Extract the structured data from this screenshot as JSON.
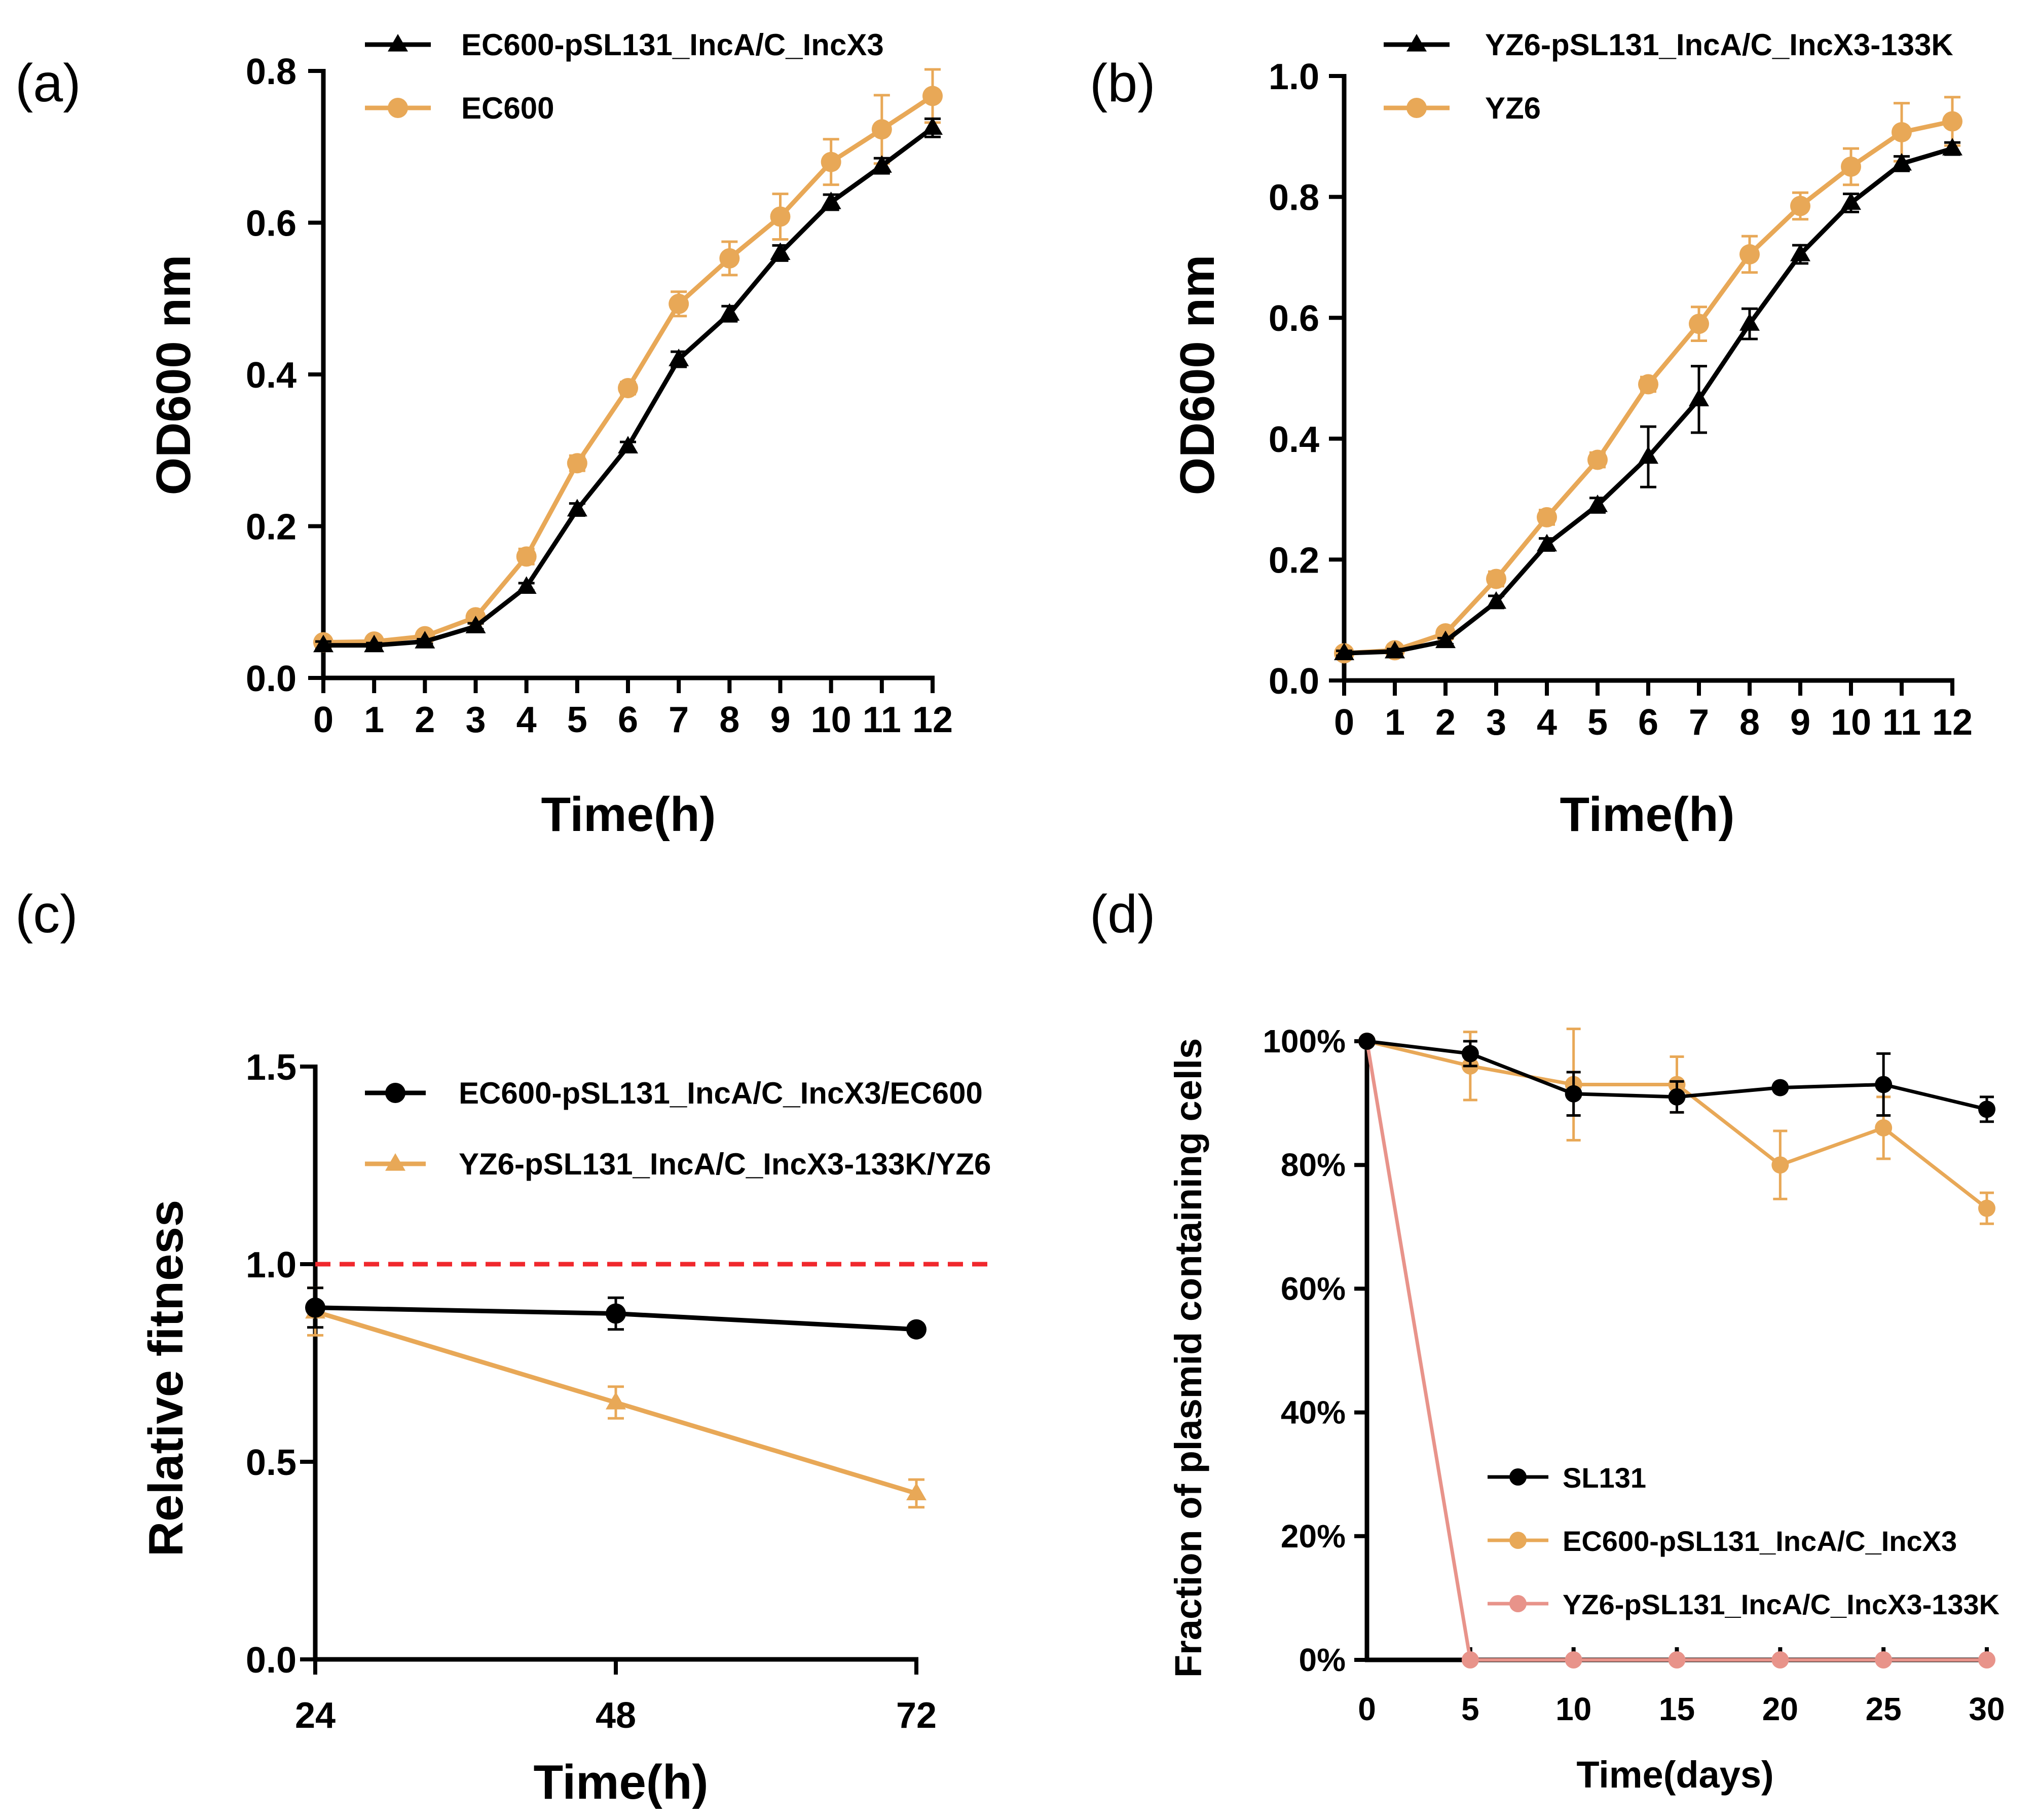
{
  "colors": {
    "black": "#000000",
    "orange": "#E8A857",
    "pink": "#E8938A",
    "red_dashed": "#F0282D"
  },
  "chart_data": [
    {
      "panel": "(a)",
      "type": "line",
      "xlabel": "Time(h)",
      "ylabel": "OD600 nm",
      "xlim": [
        0,
        12
      ],
      "ylim": [
        0,
        0.8
      ],
      "xticks": [
        0,
        1,
        2,
        3,
        4,
        5,
        6,
        7,
        8,
        9,
        10,
        11,
        12
      ],
      "xtick_labels": [
        "0",
        "1",
        "2",
        "3",
        "4",
        "5",
        "6",
        "7",
        "8",
        "9",
        "10",
        "11",
        "12"
      ],
      "yticks": [
        0,
        0.2,
        0.4,
        0.6,
        0.8
      ],
      "ytick_labels": [
        "0.0",
        "0.2",
        "0.4",
        "0.6",
        "0.8"
      ],
      "legend_position": "top-left",
      "series": [
        {
          "name": "EC600-pSL131_IncA/C_IncX3",
          "color": "#000000",
          "marker": "triangle",
          "x": [
            0,
            1,
            2,
            3,
            4,
            5,
            6,
            7,
            8,
            9,
            10,
            11,
            12
          ],
          "values": [
            0.043,
            0.043,
            0.048,
            0.068,
            0.12,
            0.222,
            0.305,
            0.42,
            0.48,
            0.56,
            0.627,
            0.675,
            0.725
          ],
          "errors": [
            0.005,
            0.003,
            0.003,
            0.004,
            0.005,
            0.008,
            0.006,
            0.01,
            0.01,
            0.01,
            0.01,
            0.01,
            0.012
          ]
        },
        {
          "name": "EC600",
          "color": "#E8A857",
          "marker": "circle",
          "x": [
            0,
            1,
            2,
            3,
            4,
            5,
            6,
            7,
            8,
            9,
            10,
            11,
            12
          ],
          "values": [
            0.047,
            0.048,
            0.055,
            0.08,
            0.16,
            0.283,
            0.382,
            0.493,
            0.553,
            0.608,
            0.68,
            0.723,
            0.767
          ],
          "errors": [
            0.004,
            0.003,
            0.004,
            0.006,
            0.01,
            0.01,
            0.008,
            0.016,
            0.022,
            0.03,
            0.03,
            0.045,
            0.035
          ]
        }
      ]
    },
    {
      "panel": "(b)",
      "type": "line",
      "xlabel": "Time(h)",
      "ylabel": "OD600 nm",
      "xlim": [
        0,
        12
      ],
      "ylim": [
        0,
        1.0
      ],
      "xticks": [
        0,
        1,
        2,
        3,
        4,
        5,
        6,
        7,
        8,
        9,
        10,
        11,
        12
      ],
      "xtick_labels": [
        "0",
        "1",
        "2",
        "3",
        "4",
        "5",
        "6",
        "7",
        "8",
        "9",
        "10",
        "11",
        "12"
      ],
      "yticks": [
        0,
        0.2,
        0.4,
        0.6,
        0.8,
        1.0
      ],
      "ytick_labels": [
        "0.0",
        "0.2",
        "0.4",
        "0.6",
        "0.8",
        "1.0"
      ],
      "legend_position": "top-left",
      "series": [
        {
          "name": "YZ6-pSL131_IncA/C_IncX3-133K",
          "color": "#000000",
          "marker": "triangle",
          "x": [
            0,
            1,
            2,
            3,
            4,
            5,
            6,
            7,
            8,
            9,
            10,
            11,
            12
          ],
          "values": [
            0.045,
            0.048,
            0.065,
            0.13,
            0.225,
            0.29,
            0.37,
            0.465,
            0.59,
            0.705,
            0.79,
            0.855,
            0.88
          ],
          "errors": [
            0.004,
            0.004,
            0.005,
            0.01,
            0.01,
            0.012,
            0.05,
            0.055,
            0.025,
            0.015,
            0.015,
            0.012,
            0.01
          ]
        },
        {
          "name": "YZ6",
          "color": "#E8A857",
          "marker": "circle",
          "x": [
            0,
            1,
            2,
            3,
            4,
            5,
            6,
            7,
            8,
            9,
            10,
            11,
            12
          ],
          "values": [
            0.045,
            0.05,
            0.078,
            0.168,
            0.27,
            0.365,
            0.49,
            0.59,
            0.705,
            0.785,
            0.85,
            0.907,
            0.925
          ],
          "errors": [
            0.004,
            0.005,
            0.008,
            0.012,
            0.012,
            0.012,
            0.012,
            0.028,
            0.03,
            0.022,
            0.03,
            0.048,
            0.04
          ]
        }
      ]
    },
    {
      "panel": "(c)",
      "type": "line",
      "xlabel": "Time(h)",
      "ylabel": "Relative fitness",
      "xlim": [
        24,
        72
      ],
      "ylim": [
        0,
        1.5
      ],
      "xticks": [
        24,
        48,
        72
      ],
      "xtick_labels": [
        "24",
        "48",
        "72"
      ],
      "yticks": [
        0,
        0.5,
        1.0,
        1.5
      ],
      "ytick_labels": [
        "0.0",
        "0.5",
        "1.0",
        "1.5"
      ],
      "reference_line": {
        "y": 1.0,
        "style": "dashed",
        "color": "#F0282D"
      },
      "legend_position": "top-right",
      "series": [
        {
          "name": "EC600-pSL131_IncA/C_IncX3/EC600",
          "color": "#000000",
          "marker": "circle",
          "x": [
            24,
            48,
            72
          ],
          "values": [
            0.89,
            0.875,
            0.835
          ],
          "errors": [
            0.05,
            0.04,
            0.012
          ]
        },
        {
          "name": "YZ6-pSL131_IncA/C_IncX3-133K/YZ6",
          "color": "#E8A857",
          "marker": "triangle",
          "x": [
            24,
            48,
            72
          ],
          "values": [
            0.88,
            0.65,
            0.42
          ],
          "errors": [
            0.06,
            0.04,
            0.035
          ]
        }
      ]
    },
    {
      "panel": "(d)",
      "type": "line",
      "xlabel": "Time(days)",
      "ylabel": "Fraction of plasmid containing cells",
      "xlim": [
        0,
        30
      ],
      "ylim": [
        0,
        100
      ],
      "xticks": [
        0,
        5,
        10,
        15,
        20,
        25,
        30
      ],
      "xtick_labels": [
        "0",
        "5",
        "10",
        "15",
        "20",
        "25",
        "30"
      ],
      "yticks": [
        0,
        20,
        40,
        60,
        80,
        100
      ],
      "ytick_labels": [
        "0%",
        "20%",
        "40%",
        "60%",
        "80%",
        "100%"
      ],
      "legend_position": "bottom-right",
      "series": [
        {
          "name": "SL131",
          "color": "#000000",
          "marker": "circle",
          "x": [
            0,
            5,
            10,
            15,
            20,
            25,
            30
          ],
          "values": [
            100,
            98,
            91.5,
            91,
            92.5,
            93,
            89
          ],
          "errors": [
            0.3,
            2,
            3.5,
            2.5,
            0.3,
            5,
            2
          ]
        },
        {
          "name": "EC600-pSL131_IncA/C_IncX3",
          "color": "#E8A857",
          "marker": "circle",
          "x": [
            0,
            5,
            10,
            15,
            20,
            25,
            30
          ],
          "values": [
            100,
            96,
            93,
            93,
            80,
            86,
            73
          ],
          "errors": [
            0.3,
            5.5,
            9,
            4.5,
            5.5,
            5,
            2.5
          ]
        },
        {
          "name": "YZ6-pSL131_IncA/C_IncX3-133K",
          "color": "#E8938A",
          "marker": "circle",
          "x": [
            0,
            5,
            10,
            15,
            20,
            25,
            30
          ],
          "values": [
            100,
            0,
            0,
            0,
            0,
            0,
            0
          ],
          "errors": [
            0,
            0,
            0,
            0,
            0,
            0,
            0
          ]
        }
      ]
    }
  ]
}
